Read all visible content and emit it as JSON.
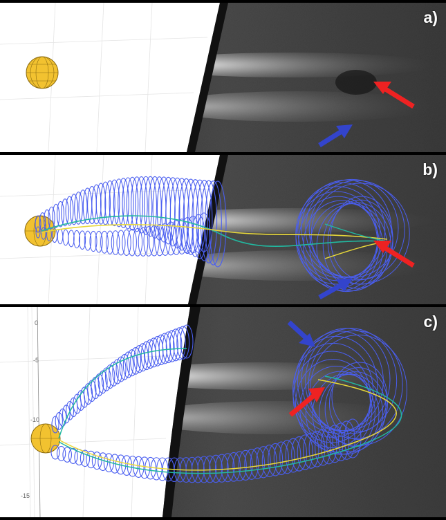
{
  "figure": {
    "panels": [
      {
        "id": "a",
        "label": "a)",
        "has_flux_rope": false
      },
      {
        "id": "b",
        "label": "b)",
        "has_flux_rope": true
      },
      {
        "id": "c",
        "label": "c)",
        "has_flux_rope": true,
        "axis_ticks": [
          "0",
          "-5",
          "-10",
          "-15"
        ]
      }
    ],
    "colors": {
      "sun": "#f2c230",
      "sun_grid": "#8a6a10",
      "red_arrow": "#ee2222",
      "blue_arrow": "#3344cc",
      "rope_outer": "#4a5ef0",
      "rope_mid": "#22b8a0",
      "rope_inner": "#e8d83a",
      "background_left": "#ffffff",
      "occulter": "#111111"
    },
    "icons": {
      "sun": "sun-sphere",
      "pointer_feature": "red-arrow",
      "pointer_shock": "blue-arrow"
    }
  }
}
